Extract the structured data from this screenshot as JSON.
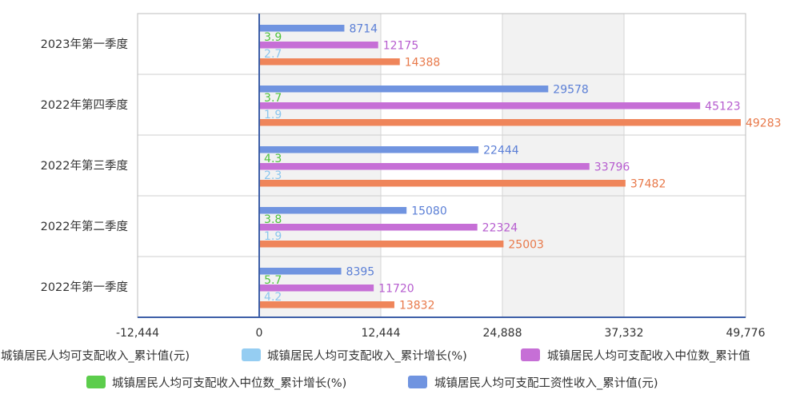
{
  "chart_data": {
    "type": "bar",
    "orientation": "horizontal",
    "categories": [
      "2023年第一季度",
      "2022年第四季度",
      "2022年第三季度",
      "2022年第二季度",
      "2022年第一季度"
    ],
    "series": [
      {
        "name": "城镇居民人均可支配工资性收入_累计值(元)",
        "color": "#7094e0",
        "label_color": "#5b7fd6",
        "values": [
          8714,
          29578,
          22444,
          15080,
          8395
        ]
      },
      {
        "name": "城镇居民人均可支配收入中位数_累计增长(%)",
        "color": "#5ccd4c",
        "label_color": "#4fc23e",
        "values": [
          3.9,
          3.7,
          4.3,
          3.8,
          5.7
        ]
      },
      {
        "name": "城镇居民人均可支配收入中位数_累计值",
        "color": "#c66fd6",
        "label_color": "#b65ccf",
        "values": [
          12175,
          45123,
          33796,
          22324,
          11720
        ]
      },
      {
        "name": "城镇居民人均可支配收入_累计增长(%)",
        "color": "#95cdf2",
        "label_color": "#8cc6ee",
        "values": [
          2.7,
          1.9,
          2.3,
          1.9,
          4.2
        ]
      },
      {
        "name": "城镇居民人均可支配收入_累计值(元)",
        "color": "#ef855a",
        "label_color": "#e8794a",
        "values": [
          14388,
          49283,
          37482,
          25003,
          13832
        ]
      }
    ],
    "xlim": [
      -12444,
      49776
    ],
    "xticks": [
      -12444,
      0,
      12444,
      24888,
      37332,
      49776
    ],
    "xtick_labels": [
      "-12,444",
      "0",
      "12,444",
      "24,888",
      "37,332",
      "49,776"
    ],
    "grid": true,
    "legend_position": "bottom",
    "legend_rows": [
      [
        "城镇居民人均可支配收入_累计值(元)",
        "城镇居民人均可支配收入_累计增长(%)",
        "城镇居民人均可支配收入中位数_累计值"
      ],
      [
        "城镇居民人均可支配收入中位数_累计增长(%)",
        "城镇居民人均可支配工资性收入_累计值(元)"
      ]
    ]
  }
}
